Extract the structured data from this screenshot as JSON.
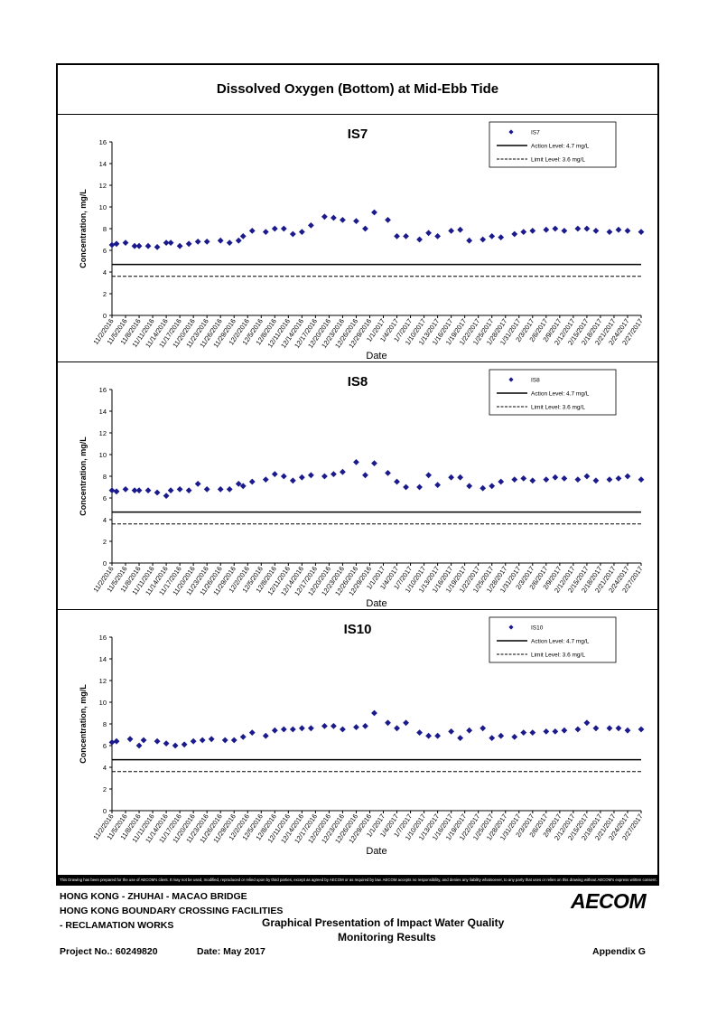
{
  "document": {
    "title": "Dissolved Oxygen (Bottom) at Mid-Ebb Tide",
    "disclaimer": "This Drawing has been prepared for the use of AECOM's client. It may not be used, modified, reproduced or relied upon by third parties, except as agreed by AECOM or as required by law. AECOM accepts no responsibility, and denies any liability whatsoever, to any party that uses or relies on this drawing without AECOM's express written consent.",
    "project_lines": [
      "HONG KONG - ZHUHAI - MACAO BRIDGE",
      "HONG KONG BOUNDARY CROSSING FACILITIES",
      "- RECLAMATION WORKS"
    ],
    "presentation_lines": [
      "Graphical Presentation of Impact Water Quality",
      "Monitoring Results"
    ],
    "project_no": "Project No.: 60249820",
    "date": "Date: May 2017",
    "appendix": "Appendix G",
    "logo": "AECOM"
  },
  "chart_data": [
    {
      "type": "scatter",
      "title": "IS7",
      "xlabel": "Date",
      "ylabel": "Concentration, mg/L",
      "ylim": [
        0,
        16
      ],
      "yticks": [
        0,
        2,
        4,
        6,
        8,
        10,
        12,
        14,
        16
      ],
      "grid": false,
      "legend_position": "top-right",
      "tick_labels": [
        "11/2/2016",
        "11/5/2016",
        "11/8/2016",
        "11/11/2016",
        "11/14/2016",
        "11/17/2016",
        "11/20/2016",
        "11/23/2016",
        "11/26/2016",
        "11/29/2016",
        "12/2/2016",
        "12/5/2016",
        "12/8/2016",
        "12/11/2016",
        "12/14/2016",
        "12/17/2016",
        "12/20/2016",
        "12/23/2016",
        "12/26/2016",
        "12/29/2016",
        "1/1/2017",
        "1/4/2017",
        "1/7/2017",
        "1/10/2017",
        "1/13/2017",
        "1/16/2017",
        "1/19/2017",
        "1/22/2017",
        "1/25/2017",
        "1/28/2017",
        "1/31/2017",
        "2/3/2017",
        "2/6/2017",
        "2/9/2017",
        "2/12/2017",
        "2/15/2017",
        "2/18/2017",
        "2/21/2017",
        "2/24/2017",
        "2/27/2017"
      ],
      "series": [
        {
          "name": "IS7",
          "marker": "diamond",
          "color": "#1a1a8c",
          "x": [
            "11/2/2016",
            "11/3/2016",
            "11/5/2016",
            "11/7/2016",
            "11/8/2016",
            "11/10/2016",
            "11/12/2016",
            "11/14/2016",
            "11/15/2016",
            "11/17/2016",
            "11/19/2016",
            "11/21/2016",
            "11/23/2016",
            "11/26/2016",
            "11/28/2016",
            "11/30/2016",
            "12/1/2016",
            "12/3/2016",
            "12/6/2016",
            "12/8/2016",
            "12/10/2016",
            "12/12/2016",
            "12/14/2016",
            "12/16/2016",
            "12/19/2016",
            "12/21/2016",
            "12/23/2016",
            "12/26/2016",
            "12/28/2016",
            "12/30/2016",
            "1/2/2017",
            "1/4/2017",
            "1/6/2017",
            "1/9/2017",
            "1/11/2017",
            "1/13/2017",
            "1/16/2017",
            "1/18/2017",
            "1/20/2017",
            "1/23/2017",
            "1/25/2017",
            "1/27/2017",
            "1/30/2017",
            "2/1/2017",
            "2/3/2017",
            "2/6/2017",
            "2/8/2017",
            "2/10/2017",
            "2/13/2017",
            "2/15/2017",
            "2/17/2017",
            "2/20/2017",
            "2/22/2017",
            "2/24/2017",
            "2/27/2017"
          ],
          "values": [
            6.5,
            6.6,
            6.7,
            6.4,
            6.4,
            6.4,
            6.3,
            6.7,
            6.7,
            6.4,
            6.6,
            6.8,
            6.8,
            6.9,
            6.7,
            6.9,
            7.3,
            7.8,
            7.7,
            8.0,
            8.0,
            7.5,
            7.7,
            8.3,
            9.1,
            9.0,
            8.8,
            8.7,
            8.0,
            9.5,
            8.8,
            7.3,
            7.3,
            7.0,
            7.6,
            7.3,
            7.8,
            7.9,
            6.9,
            7.0,
            7.3,
            7.2,
            7.5,
            7.7,
            7.8,
            7.9,
            8.0,
            7.8,
            8.0,
            8.0,
            7.8,
            7.7,
            7.9,
            7.8,
            7.7
          ]
        },
        {
          "name": "Action Level: 4.7 mg/L",
          "style": "solid",
          "value": 4.7
        },
        {
          "name": "Limit Level: 3.6 mg/L",
          "style": "dashed",
          "value": 3.6
        }
      ]
    },
    {
      "type": "scatter",
      "title": "IS8",
      "xlabel": "Date",
      "ylabel": "Concentration, mg/L",
      "ylim": [
        0,
        16
      ],
      "yticks": [
        0,
        2,
        4,
        6,
        8,
        10,
        12,
        14,
        16
      ],
      "grid": false,
      "legend_position": "top-right",
      "tick_labels": [
        "11/2/2016",
        "11/5/2016",
        "11/8/2016",
        "11/11/2016",
        "11/14/2016",
        "11/17/2016",
        "11/20/2016",
        "11/23/2016",
        "11/26/2016",
        "11/29/2016",
        "12/2/2016",
        "12/5/2016",
        "12/8/2016",
        "12/11/2016",
        "12/14/2016",
        "12/17/2016",
        "12/20/2016",
        "12/23/2016",
        "12/26/2016",
        "12/29/2016",
        "1/1/2017",
        "1/4/2017",
        "1/7/2017",
        "1/10/2017",
        "1/13/2017",
        "1/16/2017",
        "1/19/2017",
        "1/22/2017",
        "1/25/2017",
        "1/28/2017",
        "1/31/2017",
        "2/3/2017",
        "2/6/2017",
        "2/9/2017",
        "2/12/2017",
        "2/15/2017",
        "2/18/2017",
        "2/21/2017",
        "2/24/2017",
        "2/27/2017"
      ],
      "series": [
        {
          "name": "IS8",
          "marker": "diamond",
          "color": "#1a1a8c",
          "x": [
            "11/2/2016",
            "11/3/2016",
            "11/5/2016",
            "11/7/2016",
            "11/8/2016",
            "11/10/2016",
            "11/12/2016",
            "11/14/2016",
            "11/15/2016",
            "11/17/2016",
            "11/19/2016",
            "11/21/2016",
            "11/23/2016",
            "11/26/2016",
            "11/28/2016",
            "11/30/2016",
            "12/1/2016",
            "12/3/2016",
            "12/6/2016",
            "12/8/2016",
            "12/10/2016",
            "12/12/2016",
            "12/14/2016",
            "12/16/2016",
            "12/19/2016",
            "12/21/2016",
            "12/23/2016",
            "12/26/2016",
            "12/28/2016",
            "12/30/2016",
            "1/2/2017",
            "1/4/2017",
            "1/6/2017",
            "1/9/2017",
            "1/11/2017",
            "1/13/2017",
            "1/16/2017",
            "1/18/2017",
            "1/20/2017",
            "1/23/2017",
            "1/25/2017",
            "1/27/2017",
            "1/30/2017",
            "2/1/2017",
            "2/3/2017",
            "2/6/2017",
            "2/8/2017",
            "2/10/2017",
            "2/13/2017",
            "2/15/2017",
            "2/17/2017",
            "2/20/2017",
            "2/22/2017",
            "2/24/2017",
            "2/27/2017"
          ],
          "values": [
            6.7,
            6.6,
            6.8,
            6.7,
            6.7,
            6.7,
            6.5,
            6.2,
            6.7,
            6.8,
            6.7,
            7.3,
            6.8,
            6.8,
            6.8,
            7.3,
            7.1,
            7.5,
            7.7,
            8.2,
            8.0,
            7.6,
            7.9,
            8.1,
            8.0,
            8.2,
            8.4,
            9.3,
            8.1,
            9.2,
            8.3,
            7.5,
            7.0,
            7.0,
            8.1,
            7.2,
            7.9,
            7.9,
            7.1,
            6.9,
            7.1,
            7.5,
            7.7,
            7.8,
            7.6,
            7.7,
            7.9,
            7.8,
            7.7,
            8.0,
            7.6,
            7.7,
            7.8,
            8.0,
            7.7
          ]
        },
        {
          "name": "Action Level: 4.7 mg/L",
          "style": "solid",
          "value": 4.7
        },
        {
          "name": "Limit Level: 3.6 mg/L",
          "style": "dashed",
          "value": 3.6
        }
      ]
    },
    {
      "type": "scatter",
      "title": "IS10",
      "xlabel": "Date",
      "ylabel": "Concentration, mg/L",
      "ylim": [
        0,
        16
      ],
      "yticks": [
        0,
        2,
        4,
        6,
        8,
        10,
        12,
        14,
        16
      ],
      "grid": false,
      "legend_position": "top-right",
      "tick_labels": [
        "11/2/2016",
        "11/5/2016",
        "11/8/2016",
        "11/11/2016",
        "11/14/2016",
        "11/17/2016",
        "11/20/2016",
        "11/23/2016",
        "11/26/2016",
        "11/29/2016",
        "12/2/2016",
        "12/5/2016",
        "12/8/2016",
        "12/11/2016",
        "12/14/2016",
        "12/17/2016",
        "12/20/2016",
        "12/23/2016",
        "12/26/2016",
        "12/29/2016",
        "1/1/2017",
        "1/4/2017",
        "1/7/2017",
        "1/10/2017",
        "1/13/2017",
        "1/16/2017",
        "1/19/2017",
        "1/22/2017",
        "1/25/2017",
        "1/28/2017",
        "1/31/2017",
        "2/3/2017",
        "2/6/2017",
        "2/9/2017",
        "2/12/2017",
        "2/15/2017",
        "2/18/2017",
        "2/21/2017",
        "2/24/2017",
        "2/27/2017"
      ],
      "series": [
        {
          "name": "IS10",
          "marker": "diamond",
          "color": "#1a1a8c",
          "x": [
            "11/2/2016",
            "11/3/2016",
            "11/6/2016",
            "11/8/2016",
            "11/9/2016",
            "11/12/2016",
            "11/14/2016",
            "11/16/2016",
            "11/18/2016",
            "11/20/2016",
            "11/22/2016",
            "11/24/2016",
            "11/27/2016",
            "11/29/2016",
            "12/1/2016",
            "12/3/2016",
            "12/6/2016",
            "12/8/2016",
            "12/10/2016",
            "12/12/2016",
            "12/14/2016",
            "12/16/2016",
            "12/19/2016",
            "12/21/2016",
            "12/23/2016",
            "12/26/2016",
            "12/28/2016",
            "12/30/2016",
            "1/2/2017",
            "1/4/2017",
            "1/6/2017",
            "1/9/2017",
            "1/11/2017",
            "1/13/2017",
            "1/16/2017",
            "1/18/2017",
            "1/20/2017",
            "1/23/2017",
            "1/25/2017",
            "1/27/2017",
            "1/30/2017",
            "2/1/2017",
            "2/3/2017",
            "2/6/2017",
            "2/8/2017",
            "2/10/2017",
            "2/13/2017",
            "2/15/2017",
            "2/17/2017",
            "2/20/2017",
            "2/22/2017",
            "2/24/2017",
            "2/27/2017"
          ],
          "values": [
            6.3,
            6.4,
            6.6,
            6.0,
            6.5,
            6.4,
            6.2,
            6.0,
            6.1,
            6.4,
            6.5,
            6.6,
            6.5,
            6.5,
            6.8,
            7.2,
            6.9,
            7.4,
            7.5,
            7.5,
            7.6,
            7.6,
            7.8,
            7.8,
            7.5,
            7.7,
            7.8,
            9.0,
            8.1,
            7.6,
            8.1,
            7.2,
            6.9,
            6.9,
            7.3,
            6.7,
            7.4,
            7.6,
            6.7,
            6.9,
            6.8,
            7.2,
            7.2,
            7.3,
            7.3,
            7.4,
            7.5,
            8.1,
            7.6,
            7.6,
            7.6,
            7.4,
            7.5
          ]
        },
        {
          "name": "Action Level: 4.7 mg/L",
          "style": "solid",
          "value": 4.7
        },
        {
          "name": "Limit Level: 3.6 mg/L",
          "style": "dashed",
          "value": 3.6
        }
      ]
    }
  ]
}
